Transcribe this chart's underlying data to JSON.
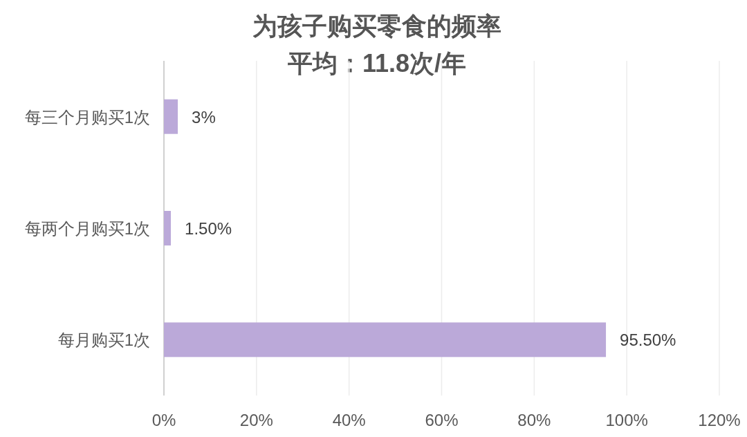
{
  "chart_data": {
    "type": "bar",
    "orientation": "horizontal",
    "title": "为孩子购买零食的频率",
    "subtitle": "平均：11.8次/年",
    "categories": [
      "每三个月购买1次",
      "每两个月购买1次",
      "每月购买1次"
    ],
    "values": [
      3,
      1.5,
      95.5
    ],
    "value_labels": [
      "3%",
      "1.50%",
      "95.50%"
    ],
    "color": "#bba9d9",
    "xlim": [
      0,
      120
    ],
    "xticks": [
      {
        "value": 0,
        "label": "0%"
      },
      {
        "value": 20,
        "label": "20%"
      },
      {
        "value": 40,
        "label": "40%"
      },
      {
        "value": 60,
        "label": "60%"
      },
      {
        "value": 80,
        "label": "80%"
      },
      {
        "value": 100,
        "label": "100%"
      },
      {
        "value": 120,
        "label": "120%"
      }
    ],
    "grid": "x"
  }
}
